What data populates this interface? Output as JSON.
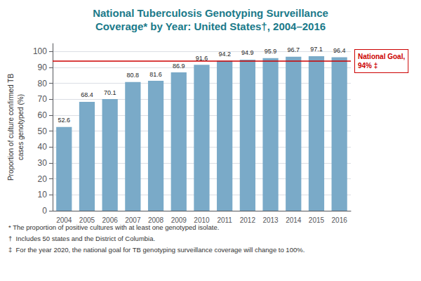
{
  "chart_data": {
    "type": "bar",
    "title": "National Tuberculosis Genotyping Surveillance",
    "subtitle": "Coverage* by Year: United States†, 2004–2016",
    "categories": [
      "2004",
      "2005",
      "2006",
      "2007",
      "2008",
      "2009",
      "2010",
      "2011",
      "2012",
      "2013",
      "2014",
      "2015",
      "2016"
    ],
    "values": [
      52.6,
      68.4,
      70.1,
      80.8,
      81.6,
      86.9,
      91.6,
      94.2,
      94.9,
      95.9,
      96.7,
      97.1,
      96.4
    ],
    "color": "#7aaac8",
    "ylabel": "Proportion of culture confirmed TB\ncases genotyped (%)",
    "ylim": [
      0,
      105
    ],
    "yticks": [
      0,
      10,
      20,
      30,
      40,
      50,
      60,
      70,
      80,
      90,
      100
    ],
    "grid": true,
    "data_labels": true,
    "annotations": [
      {
        "y": 94.0,
        "text": "National Goal,\n94% ‡",
        "color": "#cc0000"
      }
    ],
    "footnotes": [
      "* The proportion of positive cultures with at least one genotyped isolate.",
      "†  Includes 50 states and the District of Columbia.",
      "‡  For the year 2020, the national goal for TB genotyping surveillance coverage will change to 100%."
    ]
  }
}
